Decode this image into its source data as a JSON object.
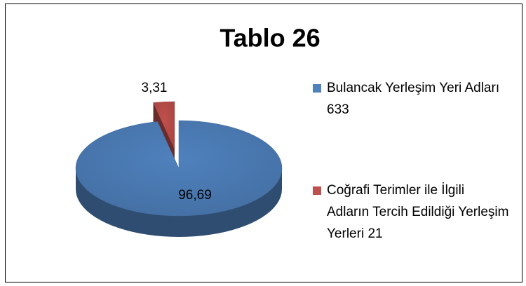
{
  "chart_data": {
    "type": "pie",
    "title": "Tablo 26",
    "categories": [
      "Bulancak Yerleşim Yeri Adları 633",
      "Coğrafi Terimler ile İlgili Adların Tercih Edildiği Yerleşim Yerleri 21"
    ],
    "values": [
      96.69,
      3.31
    ],
    "value_labels": [
      "96,69",
      "3,31"
    ],
    "colors": [
      "#4f81bd",
      "#c0504d"
    ],
    "legend": "right"
  }
}
